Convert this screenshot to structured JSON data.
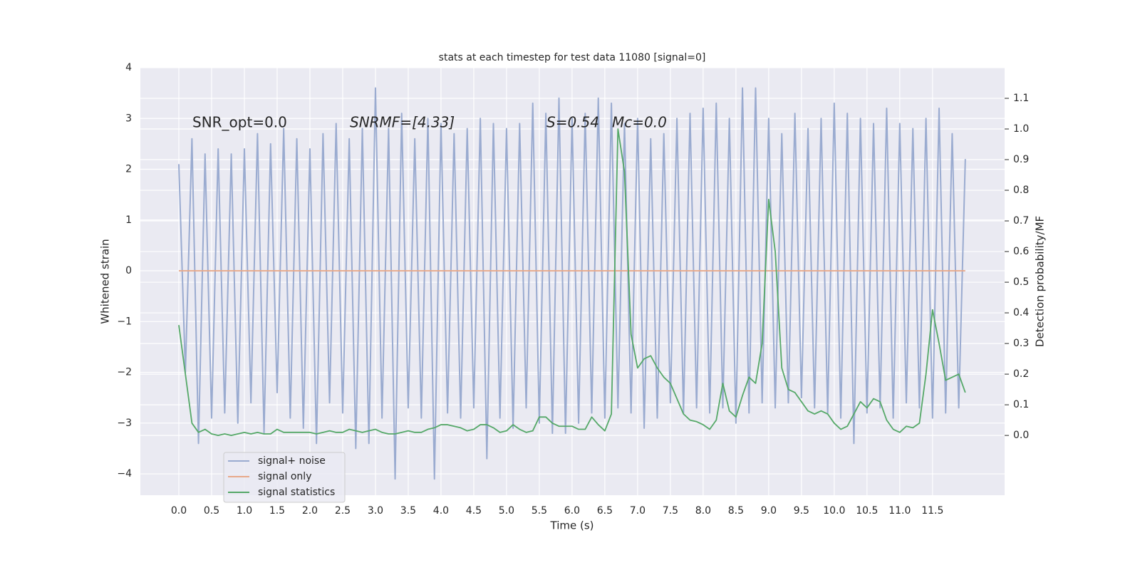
{
  "chart_data": {
    "type": "line",
    "title": "stats at each timestep for test data 11080 [signal=0]",
    "xlabel": "Time (s)",
    "ylabel": "Whitened strain",
    "y2label": "Detection probability/MF",
    "annotations": [
      "SNR_opt=0.0",
      "SNRMF=[4.33]",
      "S=0.54",
      "Mc=0.0"
    ],
    "grid": true,
    "legend": "lower left",
    "xlim": [
      -0.587,
      12.6
    ],
    "ylim": [
      -4.42,
      4
    ],
    "y2lim": [
      -0.195,
      1.2
    ],
    "xticks": [
      {
        "value": 0,
        "label": "0.0"
      },
      {
        "value": 0.5,
        "label": "0.5"
      },
      {
        "value": 1,
        "label": "1.0"
      },
      {
        "value": 1.5,
        "label": "1.5"
      },
      {
        "value": 2,
        "label": "2.0"
      },
      {
        "value": 2.5,
        "label": "2.5"
      },
      {
        "value": 3,
        "label": "3.0"
      },
      {
        "value": 3.5,
        "label": "3.5"
      },
      {
        "value": 4,
        "label": "4.0"
      },
      {
        "value": 4.5,
        "label": "4.5"
      },
      {
        "value": 5,
        "label": "5.0"
      },
      {
        "value": 5.5,
        "label": "5.5"
      },
      {
        "value": 6,
        "label": "6.0"
      },
      {
        "value": 6.5,
        "label": "6.5"
      },
      {
        "value": 7,
        "label": "7.0"
      },
      {
        "value": 7.5,
        "label": "7.5"
      },
      {
        "value": 8,
        "label": "8.0"
      },
      {
        "value": 8.5,
        "label": "8.5"
      },
      {
        "value": 9,
        "label": "9.0"
      },
      {
        "value": 9.5,
        "label": "9.5"
      },
      {
        "value": 10,
        "label": "10.0"
      },
      {
        "value": 10.5,
        "label": "10.5"
      },
      {
        "value": 11,
        "label": "11.0"
      },
      {
        "value": 11.5,
        "label": "11.5"
      }
    ],
    "yticks": [
      {
        "value": -4,
        "label": "−4"
      },
      {
        "value": -3,
        "label": "−3"
      },
      {
        "value": -2,
        "label": "−2"
      },
      {
        "value": -1,
        "label": "−1"
      },
      0,
      1,
      2,
      3,
      4
    ],
    "y2ticks": [
      {
        "value": 0,
        "label": "0.0"
      },
      {
        "value": 0.1,
        "label": "0.1"
      },
      {
        "value": 0.2,
        "label": "0.2"
      },
      {
        "value": 0.3,
        "label": "0.3"
      },
      {
        "value": 0.4,
        "label": "0.4"
      },
      {
        "value": 0.5,
        "label": "0.5"
      },
      {
        "value": 0.6,
        "label": "0.6"
      },
      {
        "value": 0.7,
        "label": "0.7"
      },
      {
        "value": 0.8,
        "label": "0.8"
      },
      {
        "value": 0.9,
        "label": "0.9"
      },
      {
        "value": 1,
        "label": "1.0"
      },
      {
        "value": 1.1,
        "label": "1.1"
      }
    ],
    "x": [
      0,
      0.1,
      0.2,
      0.3,
      0.4,
      0.5,
      0.6,
      0.7,
      0.8,
      0.9,
      1,
      1.1,
      1.2,
      1.3,
      1.4,
      1.5,
      1.6,
      1.7,
      1.8,
      1.9,
      2,
      2.1,
      2.2,
      2.3,
      2.4,
      2.5,
      2.6,
      2.7,
      2.8,
      2.9,
      3,
      3.1,
      3.2,
      3.3,
      3.4,
      3.5,
      3.6,
      3.7,
      3.8,
      3.9,
      4,
      4.1,
      4.2,
      4.3,
      4.4,
      4.5,
      4.6,
      4.7,
      4.8,
      4.9,
      5,
      5.1,
      5.2,
      5.3,
      5.4,
      5.5,
      5.6,
      5.7,
      5.8,
      5.9,
      6,
      6.1,
      6.2,
      6.3,
      6.4,
      6.5,
      6.6,
      6.7,
      6.8,
      6.9,
      7,
      7.1,
      7.2,
      7.3,
      7.4,
      7.5,
      7.6,
      7.7,
      7.8,
      7.9,
      8,
      8.1,
      8.2,
      8.3,
      8.4,
      8.5,
      8.6,
      8.7,
      8.8,
      8.9,
      9,
      9.1,
      9.2,
      9.3,
      9.4,
      9.5,
      9.6,
      9.7,
      9.8,
      9.9,
      10,
      10.1,
      10.2,
      10.3,
      10.4,
      10.5,
      10.6,
      10.7,
      10.8,
      10.9,
      11,
      11.1,
      11.2,
      11.3,
      11.4,
      11.5,
      11.6,
      11.7,
      11.8,
      11.9,
      12
    ],
    "series": [
      {
        "name": "signal+ noise",
        "color": "#9aabd0",
        "values": [
          2.1,
          -2.0,
          2.6,
          -3.4,
          2.3,
          -2.9,
          2.4,
          -2.8,
          2.3,
          -3.0,
          2.4,
          -2.6,
          2.7,
          -3.2,
          2.5,
          -2.4,
          2.8,
          -2.9,
          2.6,
          -3.1,
          2.4,
          -3.4,
          2.7,
          -2.6,
          2.9,
          -2.8,
          2.6,
          -3.5,
          2.8,
          -3.4,
          3.6,
          -2.9,
          2.8,
          -4.1,
          3.1,
          -2.7,
          2.6,
          -2.9,
          3.0,
          -4.1,
          2.9,
          -2.8,
          2.7,
          -2.9,
          2.8,
          -2.7,
          3.0,
          -3.7,
          2.9,
          -2.9,
          2.8,
          -3.1,
          2.9,
          -2.7,
          3.3,
          -3.0,
          3.1,
          -3.2,
          3.4,
          -3.2,
          3.0,
          -3.0,
          3.1,
          -2.8,
          3.4,
          -2.9,
          3.3,
          -2.7,
          2.9,
          -2.8,
          3.0,
          -3.1,
          2.6,
          -2.9,
          2.7,
          -2.6,
          3.0,
          -2.8,
          3.1,
          -2.7,
          3.2,
          -2.8,
          3.3,
          -2.7,
          3.0,
          -3.0,
          3.6,
          -2.8,
          3.6,
          -2.6,
          3.0,
          -2.7,
          2.7,
          -2.6,
          3.1,
          -2.5,
          2.8,
          -2.7,
          3.0,
          -2.8,
          3.3,
          -2.9,
          3.1,
          -3.4,
          3.0,
          -2.8,
          2.9,
          -2.7,
          3.2,
          -2.9,
          2.9,
          -2.6,
          2.8,
          -2.7,
          3.0,
          -2.9,
          3.2,
          -2.8,
          2.7,
          -2.7,
          2.2
        ]
      },
      {
        "name": "signal only",
        "color": "#e8a98a",
        "values": [
          0,
          0,
          0,
          0,
          0,
          0,
          0,
          0,
          0,
          0,
          0,
          0,
          0,
          0,
          0,
          0,
          0,
          0,
          0,
          0,
          0,
          0,
          0,
          0,
          0,
          0,
          0,
          0,
          0,
          0,
          0,
          0,
          0,
          0,
          0,
          0,
          0,
          0,
          0,
          0,
          0,
          0,
          0,
          0,
          0,
          0,
          0,
          0,
          0,
          0,
          0,
          0,
          0,
          0,
          0,
          0,
          0,
          0,
          0,
          0,
          0,
          0,
          0,
          0,
          0,
          0,
          0,
          0,
          0,
          0,
          0,
          0,
          0,
          0,
          0,
          0,
          0,
          0,
          0,
          0,
          0,
          0,
          0,
          0,
          0,
          0,
          0,
          0,
          0,
          0,
          0,
          0,
          0,
          0,
          0,
          0,
          0,
          0,
          0,
          0,
          0,
          0,
          0,
          0,
          0,
          0,
          0,
          0,
          0,
          0,
          0,
          0,
          0,
          0,
          0,
          0,
          0,
          0,
          0,
          0,
          0
        ]
      },
      {
        "name": "signal statistics",
        "color": "#55a868",
        "axis": "y2",
        "values": [
          0.36,
          0.2,
          0.04,
          0.01,
          0.02,
          0.005,
          0,
          0.005,
          0,
          0.005,
          0.01,
          0.005,
          0.01,
          0.005,
          0.005,
          0.02,
          0.01,
          0.01,
          0.01,
          0.01,
          0.01,
          0.005,
          0.01,
          0.015,
          0.01,
          0.01,
          0.02,
          0.015,
          0.01,
          0.015,
          0.02,
          0.01,
          0.005,
          0.005,
          0.01,
          0.015,
          0.01,
          0.01,
          0.02,
          0.025,
          0.035,
          0.035,
          0.03,
          0.025,
          0.015,
          0.02,
          0.035,
          0.035,
          0.025,
          0.01,
          0.015,
          0.035,
          0.02,
          0.01,
          0.015,
          0.06,
          0.06,
          0.04,
          0.03,
          0.03,
          0.03,
          0.02,
          0.02,
          0.06,
          0.035,
          0.015,
          0.07,
          1.0,
          0.86,
          0.33,
          0.22,
          0.25,
          0.26,
          0.22,
          0.19,
          0.17,
          0.12,
          0.07,
          0.05,
          0.045,
          0.035,
          0.02,
          0.05,
          0.17,
          0.08,
          0.06,
          0.13,
          0.19,
          0.17,
          0.3,
          0.77,
          0.6,
          0.22,
          0.15,
          0.14,
          0.11,
          0.08,
          0.07,
          0.08,
          0.07,
          0.04,
          0.02,
          0.03,
          0.07,
          0.11,
          0.09,
          0.12,
          0.11,
          0.05,
          0.02,
          0.01,
          0.03,
          0.025,
          0.04,
          0.2,
          0.41,
          0.3,
          0.18,
          0.19,
          0.2,
          0.14
        ]
      }
    ]
  }
}
